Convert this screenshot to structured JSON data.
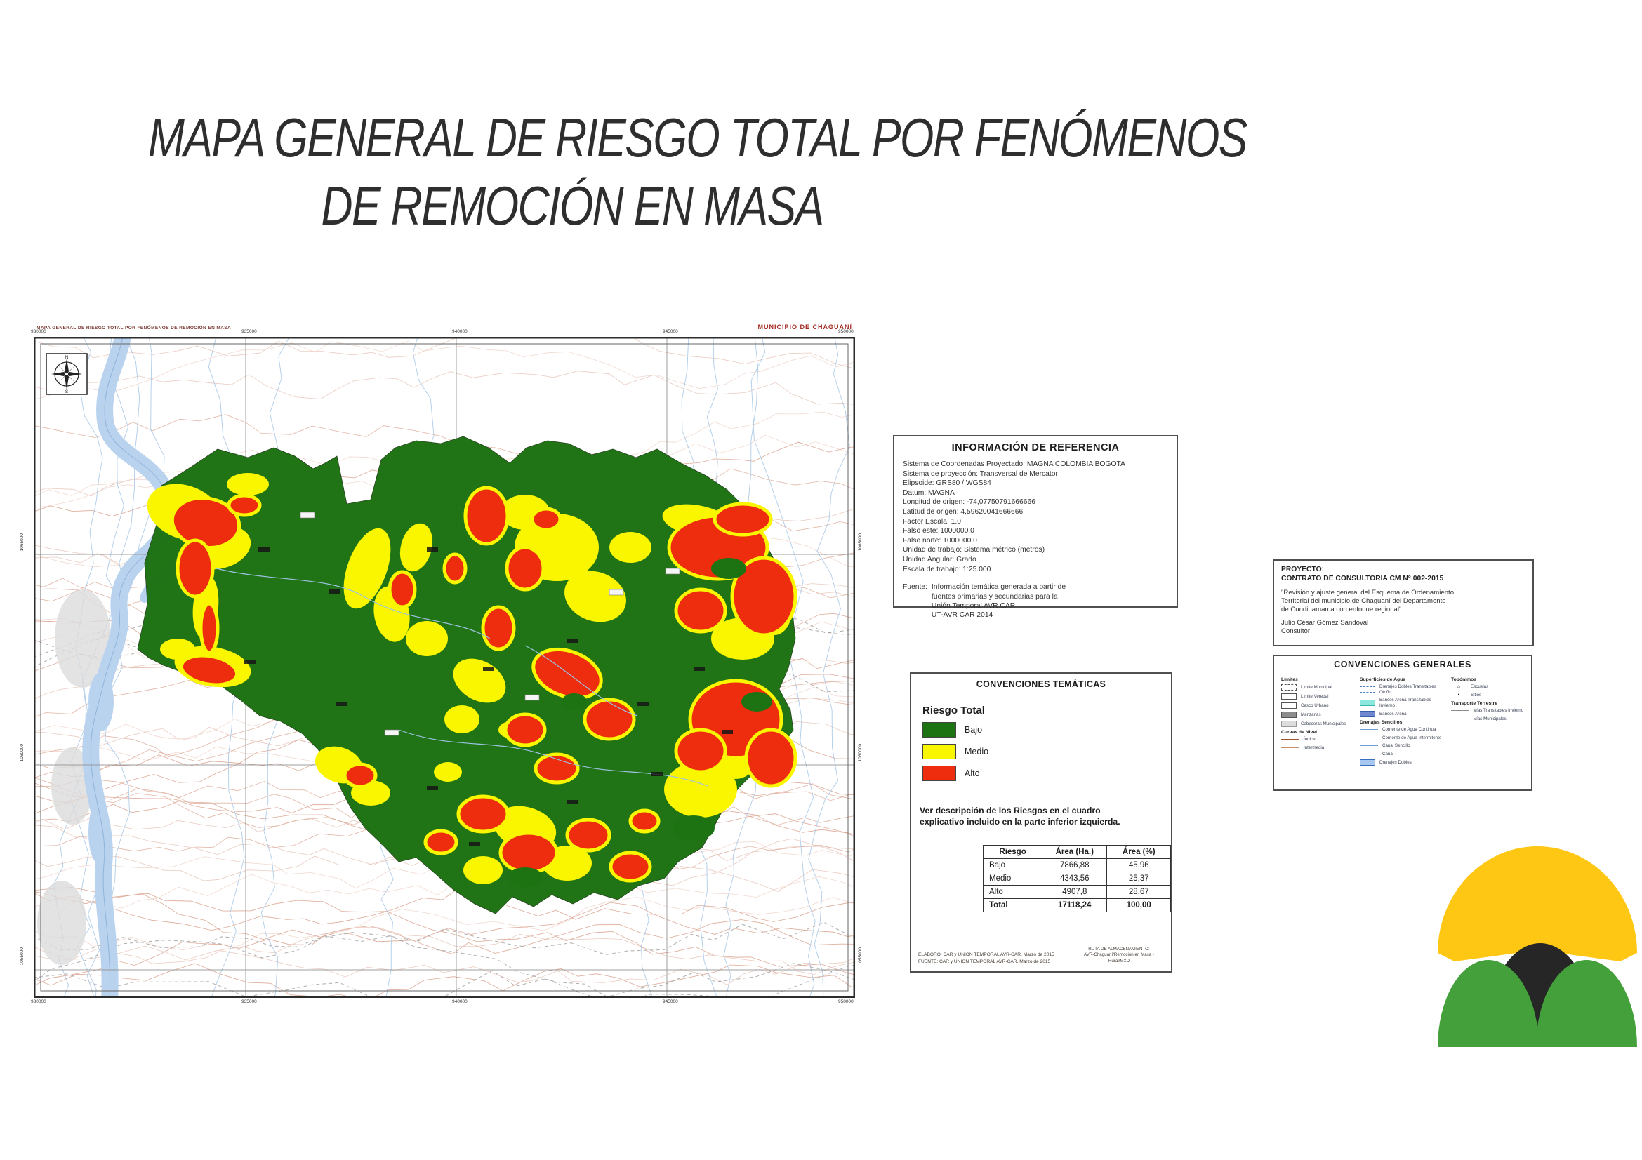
{
  "page": {
    "title_line1": "MAPA GENERAL DE RIESGO TOTAL POR FENÓMENOS",
    "title_line2": "DE REMOCIÓN EN MASA"
  },
  "map": {
    "sheet_label": "MAPA GENERAL DE RIESGO TOTAL POR FENÓMENOS DE REMOCIÓN EN MASA",
    "municipality_label": "MUNICIPIO DE CHAGUANÍ",
    "x_ticks": [
      "930000",
      "935000",
      "940000",
      "945000",
      "950000"
    ],
    "y_ticks": [
      "1065000",
      "1060000",
      "1055000"
    ],
    "risk_colors": {
      "bajo": "#1d7212",
      "medio": "#f9f600",
      "alto": "#ee2c0e"
    }
  },
  "reference_info": {
    "title": "INFORMACIÓN DE REFERENCIA",
    "lines": [
      "Sistema de Coordenadas Proyectado: MAGNA COLOMBIA BOGOTA",
      "Sistema de proyección: Transversal de Mercator",
      "Elipsoide: GRS80 / WGS84",
      "Datum: MAGNA",
      "Longitud de origen: -74,07750791666666",
      "Latitud de origen: 4,59620041666666",
      "Factor Escala: 1.0",
      "Falso este: 1000000.0",
      "Falso norte: 1000000.0",
      "Unidad de trabajo: Sistema métrico (metros)",
      "Unidad Angular: Grado",
      "Escala de trabajo: 1:25.000"
    ],
    "fuente_label": "Fuente:",
    "fuente_lines": [
      "Información temática generada a partir de",
      "fuentes primarias y secundarias para la",
      "Unión Temporal AVR CAR",
      "UT-AVR CAR 2014"
    ]
  },
  "conv_tematicas": {
    "title": "CONVENCIONES TEMÁTICAS",
    "group_title": "Riesgo Total",
    "classes": [
      {
        "label": "Bajo",
        "risk": "bajo"
      },
      {
        "label": "Medio",
        "risk": "medio"
      },
      {
        "label": "Alto",
        "risk": "alto"
      }
    ],
    "note_line1": "Ver descripción de los Riesgos en el cuadro",
    "note_line2": "explicativo incluido en la parte inferior izquierda.",
    "table": {
      "headers": [
        "Riesgo",
        "Área (Ha.)",
        "Área (%)"
      ],
      "rows": [
        [
          "Bajo",
          "7866,88",
          "45,96"
        ],
        [
          "Medio",
          "4343,56",
          "25,37"
        ],
        [
          "Alto",
          "4907,8",
          "28,67"
        ],
        [
          "Total",
          "17118,24",
          "100,00"
        ]
      ]
    },
    "elaboro": "ELABORÓ: CAR y UNIÓN TEMPORAL AVR-CAR. Marzo de 2015",
    "fuente": "FUENTE: CAR y UNIÓN TEMPORAL AVR-CAR. Marzo de 2015",
    "ruta_lines": [
      "RUTA DE ALMACENAMIENTO:",
      "AVR-Chaguaní/Remoción en Masa -",
      "Rural/MXD"
    ]
  },
  "proyecto": {
    "label": "PROYECTO:",
    "contract": "CONTRATO DE CONSULTORIA CM N° 002-2015",
    "description_lines": [
      "\"Revisión y ajuste general del Esquema de Ordenamiento",
      "Territorial del municipio de Chaguaní del Departamento",
      "de Cundinamarca con enfoque regional\""
    ],
    "consultant": "Julio César Gómez Sandoval",
    "role": "Consultor"
  },
  "conv_generales": {
    "title": "CONVENCIONES GENERALES",
    "columns": [
      {
        "groups": [
          {
            "title": "Límites",
            "items": [
              {
                "label": "Límite Municipal",
                "swatch": "box-dashed"
              },
              {
                "label": "Límite Veredal",
                "swatch": "box"
              },
              {
                "label": "Casco Urbano",
                "swatch": "box"
              },
              {
                "label": "Manzanas",
                "swatch": "box-darkgray"
              },
              {
                "label": "Cabeceras Municipales",
                "swatch": "box-lightgray"
              }
            ]
          },
          {
            "title": "Curvas de Nivel",
            "items": [
              {
                "label": "Índice",
                "swatch": "line-brown"
              },
              {
                "label": "Intermedia",
                "swatch": "line-tan"
              }
            ]
          }
        ]
      },
      {
        "groups": [
          {
            "title": "Superficies de Agua",
            "items": [
              {
                "label": "Drenajes Dobles Transitables Otoño",
                "swatch": "box-blueborder"
              },
              {
                "label": "Bancos Arena Transitables Invierno",
                "swatch": "box-teal"
              },
              {
                "label": "Bancos Arena",
                "swatch": "box-bluedots"
              }
            ]
          },
          {
            "title": "Drenajes Sencillos",
            "items": [
              {
                "label": "Corriente de Agua Continua",
                "swatch": "line-blue"
              },
              {
                "label": "Corriente de Agua Intermitente",
                "swatch": "line-lightblue"
              },
              {
                "label": "Canal Sencillo",
                "swatch": "line-blue"
              },
              {
                "label": "Canal",
                "swatch": "line-paleblue"
              },
              {
                "label": "Drenajes Dobles",
                "swatch": "box-bluefill"
              }
            ]
          }
        ]
      },
      {
        "groups": [
          {
            "title": "Topónimos",
            "items": [
              {
                "label": "Escuelas",
                "swatch": "glyph-school"
              },
              {
                "label": "Sitios",
                "swatch": "glyph-dot"
              }
            ]
          },
          {
            "title": "Transporte Terrestre",
            "items": [
              {
                "label": "Vías Transitables Invierno",
                "swatch": "line-gray"
              },
              {
                "label": "Vías Municipales",
                "swatch": "line-dashdot"
              }
            ]
          }
        ]
      }
    ]
  },
  "logo": {
    "yellow": "#fdc713",
    "green": "#44a03a",
    "dark": "#262626"
  }
}
